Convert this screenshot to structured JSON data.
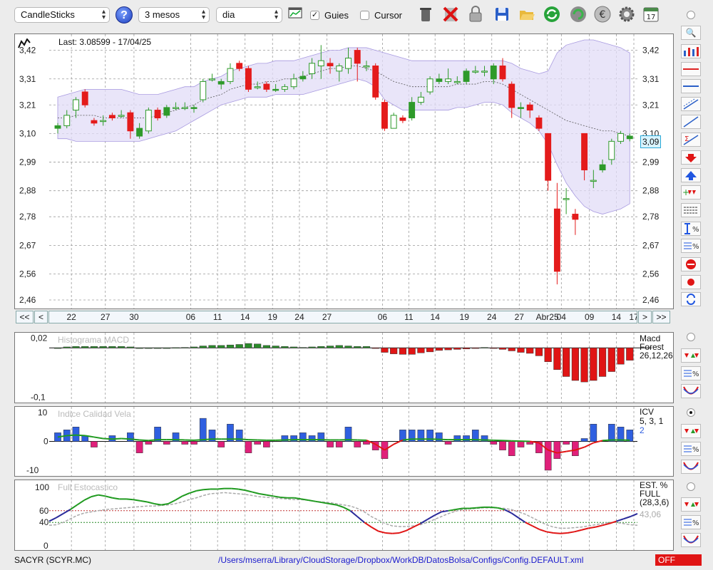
{
  "toolbar": {
    "chart_type": "CandleSticks",
    "period": "3 mesos",
    "interval": "dia",
    "guides_label": "Guies",
    "guides_checked": true,
    "cursor_label": "Cursor",
    "cursor_checked": false,
    "help_glyph": "?",
    "calendar_day": "17",
    "icons": [
      "trash-icon",
      "delete-icon",
      "lock-icon",
      "save-icon",
      "open-folder-icon",
      "refresh-icon",
      "reload-icon",
      "euro-icon",
      "gear-icon",
      "calendar-icon"
    ]
  },
  "main_chart": {
    "last_label": "Last: 3.08599 - 17/04/25",
    "current_price_tag": "3,09",
    "y_ticks": [
      "3,42",
      "3,31",
      "3,21",
      "3,10",
      "2,99",
      "2,88",
      "2,78",
      "2,67",
      "2,56",
      "2,46"
    ],
    "x_ticks": [
      "22",
      "27",
      "30",
      "06",
      "11",
      "14",
      "19",
      "24",
      "27",
      "06",
      "11",
      "14",
      "19",
      "24",
      "27",
      "Abr25",
      "04",
      "09",
      "14",
      "17"
    ],
    "nav": {
      "first": "<<",
      "prev": "<",
      "next": ">",
      "last": ">>"
    }
  },
  "macd_panel": {
    "title": "Histograma MACD",
    "y_ticks": [
      "0,02",
      "-0,1"
    ],
    "legend_line1": "Macd",
    "legend_line2": "Forest",
    "legend_line3": "26,12,26"
  },
  "icv_panel": {
    "title": "Indice Calidad Vela",
    "y_ticks": [
      "10",
      "0",
      "-10"
    ],
    "legend_line1": "ICV",
    "legend_line2": "5, 3, 1",
    "legend_value": "2"
  },
  "stoch_panel": {
    "title": "Full Estocastico",
    "y_ticks": [
      "100",
      "60",
      "40",
      "0"
    ],
    "legend_line1": "EST. %",
    "legend_line2": "FULL",
    "legend_line3": "(28,3,6)",
    "legend_value": "43,06"
  },
  "status": {
    "symbol": "SACYR (SCYR.MC)",
    "path": "/Users/mserra/Library/CloudStorage/Dropbox/WorkDB/DatosBolsa/Configs/Config.DEFAULT.xml",
    "indicator": "OFF"
  },
  "colors": {
    "up": "#2e9a2a",
    "down": "#e41b1b",
    "band": "#e2dcf7",
    "macd_pos": "#2a8a2a",
    "macd_neg": "#e01515",
    "icv_pos": "#2f5fe0",
    "icv_neg": "#e0207a",
    "stoch_k": "#1f9a1f",
    "stoch_low": "#e01515",
    "stoch_mid": "#2a2a9a"
  },
  "chart_data": [
    {
      "type": "candlestick",
      "ylim": [
        2.46,
        3.46
      ],
      "candles": [
        {
          "o": 3.12,
          "c": 3.13,
          "h": 3.14,
          "l": 3.1
        },
        {
          "o": 3.13,
          "c": 3.17,
          "h": 3.19,
          "l": 3.12
        },
        {
          "o": 3.19,
          "c": 3.23,
          "h": 3.24,
          "l": 3.16
        },
        {
          "o": 3.26,
          "c": 3.21,
          "h": 3.27,
          "l": 3.2
        },
        {
          "o": 3.15,
          "c": 3.14,
          "h": 3.16,
          "l": 3.13
        },
        {
          "o": 3.15,
          "c": 3.15,
          "h": 3.17,
          "l": 3.13
        },
        {
          "o": 3.17,
          "c": 3.16,
          "h": 3.18,
          "l": 3.15
        },
        {
          "o": 3.17,
          "c": 3.17,
          "h": 3.19,
          "l": 3.16
        },
        {
          "o": 3.18,
          "c": 3.11,
          "h": 3.19,
          "l": 3.08
        },
        {
          "o": 3.09,
          "c": 3.12,
          "h": 3.14,
          "l": 3.08
        },
        {
          "o": 3.11,
          "c": 3.19,
          "h": 3.2,
          "l": 3.1
        },
        {
          "o": 3.19,
          "c": 3.16,
          "h": 3.2,
          "l": 3.15
        },
        {
          "o": 3.17,
          "c": 3.2,
          "h": 3.21,
          "l": 3.16
        },
        {
          "o": 3.2,
          "c": 3.2,
          "h": 3.22,
          "l": 3.19
        },
        {
          "o": 3.2,
          "c": 3.2,
          "h": 3.22,
          "l": 3.19
        },
        {
          "o": 3.2,
          "c": 3.2,
          "h": 3.21,
          "l": 3.18
        },
        {
          "o": 3.23,
          "c": 3.3,
          "h": 3.31,
          "l": 3.22
        },
        {
          "o": 3.31,
          "c": 3.31,
          "h": 3.33,
          "l": 3.3
        },
        {
          "o": 3.29,
          "c": 3.3,
          "h": 3.31,
          "l": 3.27
        },
        {
          "o": 3.3,
          "c": 3.35,
          "h": 3.37,
          "l": 3.29
        },
        {
          "o": 3.37,
          "c": 3.35,
          "h": 3.38,
          "l": 3.34
        },
        {
          "o": 3.35,
          "c": 3.27,
          "h": 3.36,
          "l": 3.26
        },
        {
          "o": 3.28,
          "c": 3.28,
          "h": 3.3,
          "l": 3.27
        },
        {
          "o": 3.29,
          "c": 3.27,
          "h": 3.3,
          "l": 3.26
        },
        {
          "o": 3.27,
          "c": 3.27,
          "h": 3.29,
          "l": 3.26
        },
        {
          "o": 3.27,
          "c": 3.28,
          "h": 3.29,
          "l": 3.26
        },
        {
          "o": 3.28,
          "c": 3.31,
          "h": 3.33,
          "l": 3.27
        },
        {
          "o": 3.31,
          "c": 3.32,
          "h": 3.34,
          "l": 3.3
        },
        {
          "o": 3.33,
          "c": 3.37,
          "h": 3.39,
          "l": 3.31
        },
        {
          "o": 3.36,
          "c": 3.38,
          "h": 3.44,
          "l": 3.31
        },
        {
          "o": 3.37,
          "c": 3.36,
          "h": 3.39,
          "l": 3.33
        },
        {
          "o": 3.34,
          "c": 3.36,
          "h": 3.37,
          "l": 3.3
        },
        {
          "o": 3.35,
          "c": 3.39,
          "h": 3.43,
          "l": 3.33
        },
        {
          "o": 3.42,
          "c": 3.37,
          "h": 3.43,
          "l": 3.3
        },
        {
          "o": 3.36,
          "c": 3.36,
          "h": 3.38,
          "l": 3.34
        },
        {
          "o": 3.36,
          "c": 3.24,
          "h": 3.37,
          "l": 3.23
        },
        {
          "o": 3.22,
          "c": 3.12,
          "h": 3.23,
          "l": 3.11
        },
        {
          "o": 3.12,
          "c": 3.17,
          "h": 3.18,
          "l": 3.12
        },
        {
          "o": 3.16,
          "c": 3.15,
          "h": 3.17,
          "l": 3.14
        },
        {
          "o": 3.16,
          "c": 3.22,
          "h": 3.24,
          "l": 3.15
        },
        {
          "o": 3.22,
          "c": 3.24,
          "h": 3.26,
          "l": 3.21
        },
        {
          "o": 3.26,
          "c": 3.31,
          "h": 3.32,
          "l": 3.25
        },
        {
          "o": 3.3,
          "c": 3.31,
          "h": 3.33,
          "l": 3.29
        },
        {
          "o": 3.3,
          "c": 3.31,
          "h": 3.35,
          "l": 3.29
        },
        {
          "o": 3.3,
          "c": 3.3,
          "h": 3.32,
          "l": 3.29
        },
        {
          "o": 3.3,
          "c": 3.34,
          "h": 3.35,
          "l": 3.29
        },
        {
          "o": 3.34,
          "c": 3.34,
          "h": 3.36,
          "l": 3.33
        },
        {
          "o": 3.34,
          "c": 3.34,
          "h": 3.36,
          "l": 3.32
        },
        {
          "o": 3.31,
          "c": 3.36,
          "h": 3.37,
          "l": 3.29
        },
        {
          "o": 3.36,
          "c": 3.31,
          "h": 3.39,
          "l": 3.3
        },
        {
          "o": 3.29,
          "c": 3.2,
          "h": 3.3,
          "l": 3.16
        },
        {
          "o": 3.2,
          "c": 3.2,
          "h": 3.22,
          "l": 3.16
        },
        {
          "o": 3.21,
          "c": 3.19,
          "h": 3.22,
          "l": 3.16
        },
        {
          "o": 3.16,
          "c": 3.12,
          "h": 3.17,
          "l": 3.11
        },
        {
          "o": 3.1,
          "c": 2.92,
          "h": 3.1,
          "l": 2.88
        },
        {
          "o": 2.81,
          "c": 2.57,
          "h": 2.91,
          "l": 2.52
        },
        {
          "o": 2.85,
          "c": 2.85,
          "h": 2.89,
          "l": 2.79
        },
        {
          "o": 2.79,
          "c": 2.77,
          "h": 2.81,
          "l": 2.71
        },
        {
          "o": 3.1,
          "c": 2.96,
          "h": 3.1,
          "l": 2.92
        },
        {
          "o": 2.92,
          "c": 2.92,
          "h": 2.96,
          "l": 2.89
        },
        {
          "o": 2.96,
          "c": 2.98,
          "h": 3.0,
          "l": 2.95
        },
        {
          "o": 3.0,
          "c": 3.07,
          "h": 3.08,
          "l": 2.98
        },
        {
          "o": 3.07,
          "c": 3.1,
          "h": 3.11,
          "l": 3.06
        },
        {
          "o": 3.08,
          "c": 3.09,
          "h": 3.1,
          "l": 3.07
        }
      ],
      "band_upper": [
        3.24,
        3.25,
        3.26,
        3.27,
        3.27,
        3.27,
        3.27,
        3.27,
        3.26,
        3.25,
        3.25,
        3.25,
        3.26,
        3.27,
        3.28,
        3.28,
        3.3,
        3.31,
        3.32,
        3.34,
        3.35,
        3.36,
        3.37,
        3.37,
        3.38,
        3.38,
        3.38,
        3.39,
        3.4,
        3.41,
        3.42,
        3.42,
        3.43,
        3.43,
        3.43,
        3.42,
        3.41,
        3.4,
        3.39,
        3.38,
        3.38,
        3.38,
        3.38,
        3.38,
        3.38,
        3.38,
        3.38,
        3.38,
        3.38,
        3.38,
        3.37,
        3.35,
        3.34,
        3.33,
        3.34,
        3.41,
        3.44,
        3.45,
        3.46,
        3.46,
        3.45,
        3.44,
        3.43,
        3.41
      ],
      "band_lower": [
        3.08,
        3.08,
        3.07,
        3.07,
        3.07,
        3.07,
        3.07,
        3.07,
        3.07,
        3.07,
        3.08,
        3.09,
        3.1,
        3.11,
        3.13,
        3.15,
        3.17,
        3.19,
        3.21,
        3.22,
        3.23,
        3.24,
        3.24,
        3.24,
        3.25,
        3.25,
        3.25,
        3.25,
        3.26,
        3.27,
        3.28,
        3.29,
        3.3,
        3.31,
        3.3,
        3.28,
        3.23,
        3.21,
        3.19,
        3.19,
        3.19,
        3.19,
        3.19,
        3.19,
        3.2,
        3.2,
        3.21,
        3.22,
        3.22,
        3.21,
        3.18,
        3.16,
        3.14,
        3.11,
        3.06,
        2.98,
        2.91,
        2.86,
        2.82,
        2.8,
        2.79,
        2.8,
        2.81,
        2.83
      ],
      "band_mid": [
        3.16,
        3.16,
        3.17,
        3.17,
        3.17,
        3.16,
        3.16,
        3.16,
        3.16,
        3.16,
        3.16,
        3.17,
        3.18,
        3.19,
        3.2,
        3.21,
        3.23,
        3.24,
        3.25,
        3.27,
        3.28,
        3.29,
        3.29,
        3.3,
        3.3,
        3.31,
        3.31,
        3.32,
        3.33,
        3.34,
        3.35,
        3.35,
        3.36,
        3.36,
        3.35,
        3.34,
        3.32,
        3.3,
        3.29,
        3.28,
        3.28,
        3.28,
        3.28,
        3.28,
        3.29,
        3.29,
        3.29,
        3.3,
        3.3,
        3.29,
        3.27,
        3.25,
        3.23,
        3.21,
        3.19,
        3.17,
        3.15,
        3.14,
        3.13,
        3.12,
        3.11,
        3.11,
        3.1,
        3.09
      ]
    },
    {
      "type": "bar",
      "title": "Histograma MACD",
      "ylim": [
        -0.105,
        0.025
      ],
      "values": [
        0.0,
        0.002,
        0.003,
        0.003,
        0.003,
        0.003,
        0.003,
        0.003,
        0.002,
        0.0,
        0.0,
        0.0,
        0.0,
        0.0005,
        0.001,
        0.002,
        0.004,
        0.005,
        0.005,
        0.006,
        0.007,
        0.009,
        0.008,
        0.005,
        0.004,
        0.003,
        0.002,
        0.001,
        0.002,
        0.003,
        0.004,
        0.005,
        0.004,
        0.003,
        0.003,
        -0.001,
        -0.009,
        -0.012,
        -0.013,
        -0.013,
        -0.01,
        -0.008,
        -0.005,
        -0.004,
        -0.003,
        -0.002,
        -0.0005,
        0.001,
        -0.001,
        -0.003,
        -0.006,
        -0.009,
        -0.011,
        -0.016,
        -0.028,
        -0.044,
        -0.058,
        -0.066,
        -0.069,
        -0.066,
        -0.058,
        -0.048,
        -0.033,
        -0.025
      ]
    },
    {
      "type": "bar",
      "title": "Indice Calidad Vela",
      "ylim": [
        -11,
        11
      ],
      "values": [
        3,
        4,
        5,
        2,
        -2,
        0,
        2,
        0,
        3,
        -4,
        -1,
        5,
        -1,
        3,
        -1,
        -1,
        8,
        4,
        -2,
        6,
        4,
        -4,
        -1,
        -2,
        0,
        2,
        2,
        3,
        2,
        3,
        -2,
        -2,
        5,
        -2,
        -1,
        -3,
        -6,
        0,
        4,
        4,
        4,
        4,
        3,
        -1,
        2,
        2,
        4,
        2,
        -1,
        -3,
        -5,
        -2,
        -1,
        -4,
        -10,
        -6,
        -1,
        -5,
        1,
        6,
        0,
        6,
        5,
        4
      ],
      "signal": [
        1.5,
        2,
        2.2,
        2,
        1.5,
        1,
        0.8,
        1,
        0.8,
        0.5,
        0.3,
        0.6,
        0.6,
        0.6,
        0.5,
        0.4,
        0.6,
        0.8,
        0.8,
        0.8,
        0.8,
        0.6,
        0.5,
        0.4,
        0.4,
        0.5,
        0.6,
        0.6,
        0.6,
        0.6,
        0.5,
        0.5,
        0.6,
        0.5,
        0.4,
        -1,
        -3,
        -1,
        0.5,
        0.8,
        0.8,
        0.8,
        0.7,
        0.6,
        0.6,
        0.6,
        0.6,
        0.5,
        0.4,
        0.3,
        0.2,
        0.1,
        0,
        -0.5,
        -3,
        -4,
        -3.5,
        -3,
        -2,
        -0.5,
        0.3,
        0.5,
        0.5,
        0.4
      ]
    },
    {
      "type": "line",
      "title": "Full Estocastico",
      "ylim": [
        0,
        100
      ],
      "series": [
        {
          "values": [
            42,
            48,
            55,
            62,
            70,
            78,
            84,
            87,
            85,
            82,
            80,
            80,
            79,
            77,
            75,
            72,
            70,
            72,
            78,
            85,
            90,
            94,
            96,
            97,
            97,
            98,
            98,
            97,
            95,
            92,
            89,
            87,
            85,
            83,
            82,
            82,
            80,
            78,
            76,
            74,
            72,
            70,
            66,
            60,
            50,
            40,
            32,
            25,
            22,
            21,
            22,
            26,
            32,
            38,
            45,
            52,
            58,
            60,
            62,
            64,
            64,
            65,
            66,
            66,
            65,
            62,
            56,
            48,
            40,
            34,
            28,
            24,
            22,
            21,
            22,
            24,
            27,
            30,
            32,
            35,
            38,
            42,
            46,
            50,
            55
          ]
        },
        {
          "values": [
            35,
            36,
            40,
            46,
            52,
            56,
            58,
            60,
            62,
            63,
            64,
            65,
            66,
            67,
            68,
            68,
            69,
            70,
            72,
            75,
            79,
            82,
            86,
            89,
            90,
            91,
            90,
            89,
            88,
            86,
            84,
            83,
            82,
            81,
            80,
            79,
            79,
            78,
            76,
            75,
            74,
            72,
            70,
            68,
            64,
            58,
            50,
            44,
            38,
            34,
            33,
            33,
            34,
            36,
            40,
            45,
            50,
            55,
            59,
            62,
            63,
            64,
            65,
            65,
            65,
            64,
            62,
            58,
            54,
            48,
            42,
            36,
            32,
            30,
            30,
            31,
            32,
            34,
            36,
            38,
            40,
            40,
            38,
            36,
            35
          ]
        }
      ]
    }
  ]
}
